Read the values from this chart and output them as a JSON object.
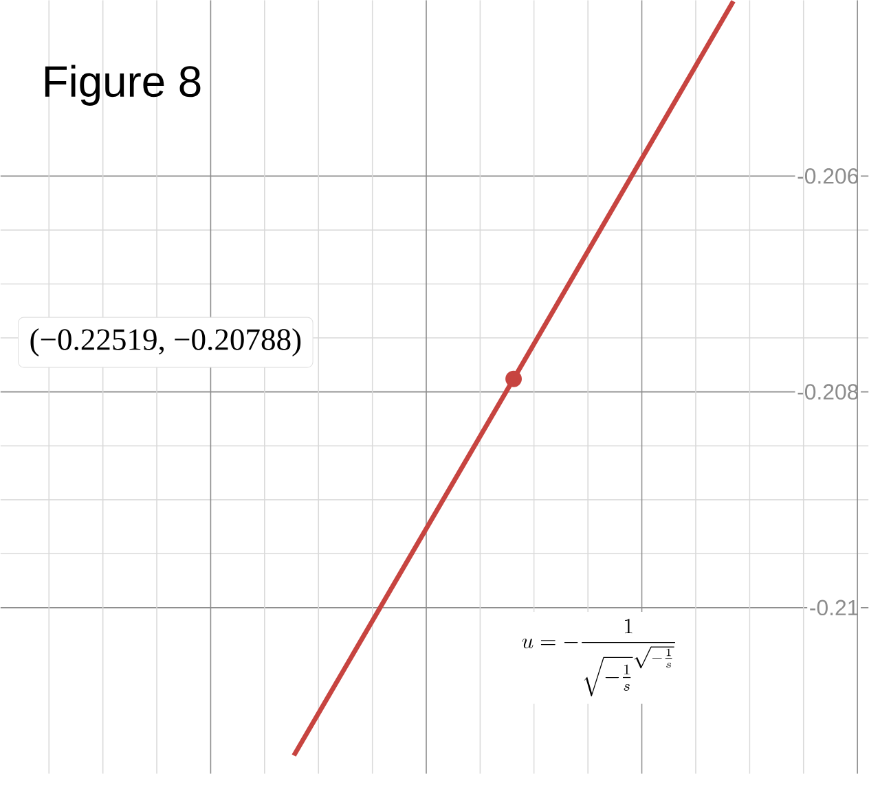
{
  "chart_data": {
    "type": "line",
    "title": "Figure 8",
    "categories": [
      null,
      null,
      null
    ],
    "series": [
      {
        "color": "#c74440",
        "values": [
          -0.21137,
          -0.20788,
          -0.20438
        ]
      }
    ],
    "ylim": [
      -0.21154,
      -0.20437
    ],
    "yticks": [
      {
        "value": -0.21,
        "label": "-0.21"
      },
      {
        "value": -0.208,
        "label": "-0.208"
      },
      {
        "value": -0.206,
        "label": "-0.206"
      }
    ],
    "tick_labels": "y",
    "grid": true,
    "annotations": [
      "(−0.22519, −0.20788)",
      "u=-\\frac{1}{\\sqrt{-\\frac{1}{s}}^{\\sqrt{-\\frac{1}{s}}}}"
    ]
  }
}
